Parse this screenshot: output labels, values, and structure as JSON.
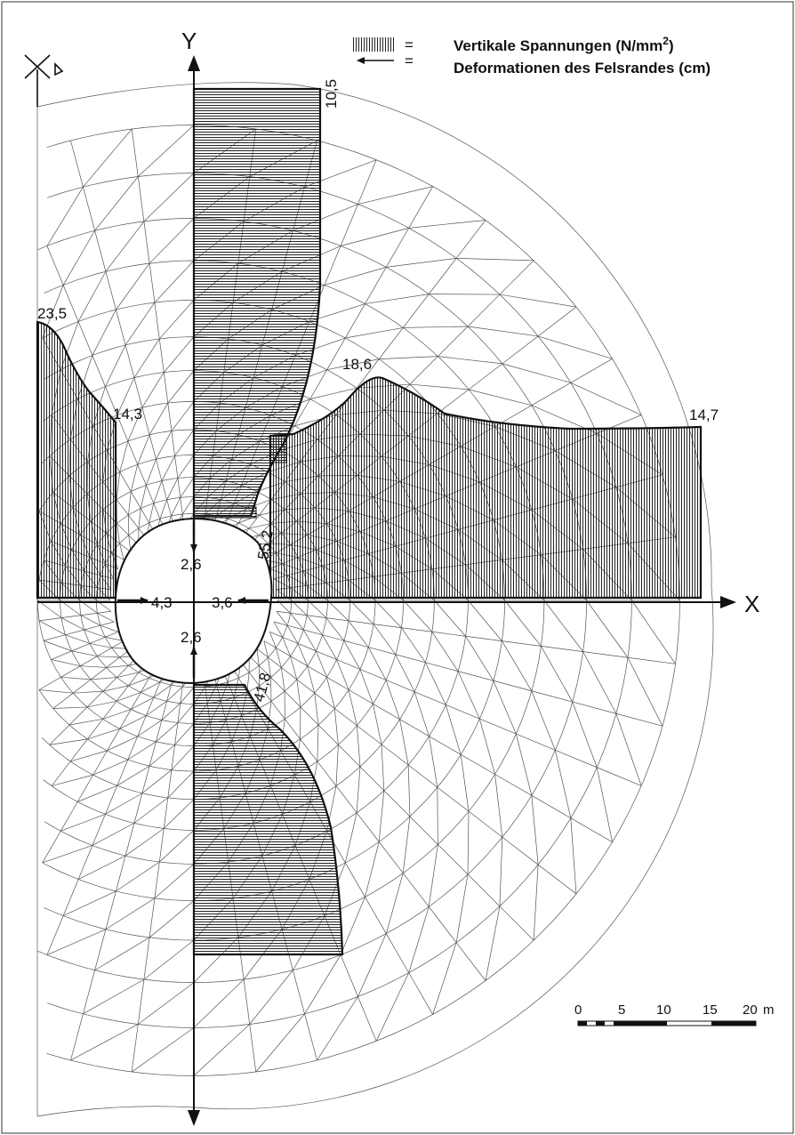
{
  "legend": {
    "stress_symbol_eq": "=",
    "deformation_symbol_eq": "=",
    "stress_label": "Vertikale Spannungen",
    "stress_unit_open": "(N/mm",
    "stress_unit_sup": "2",
    "stress_unit_close": ")",
    "deformation_label": "Deformationen des Felsrandes",
    "deformation_unit": "(cm)"
  },
  "axes": {
    "x_label": "X",
    "y_label": "Y"
  },
  "values": {
    "top_stress": "10,5",
    "left_peak_stress": "23,5",
    "left_edge_stress": "14,3",
    "right_peak_stress": "18,6",
    "right_end_stress": "14,7",
    "crown_wall_stress": "55,2",
    "invert_wall_stress": "41,8",
    "crown_deformation": "2,6",
    "invert_deformation": "2,6",
    "left_wall_deformation": "4,3",
    "right_wall_deformation": "3,6"
  },
  "scale_bar": {
    "ticks": [
      "0",
      "5",
      "10",
      "15",
      "20"
    ],
    "unit": "m"
  }
}
